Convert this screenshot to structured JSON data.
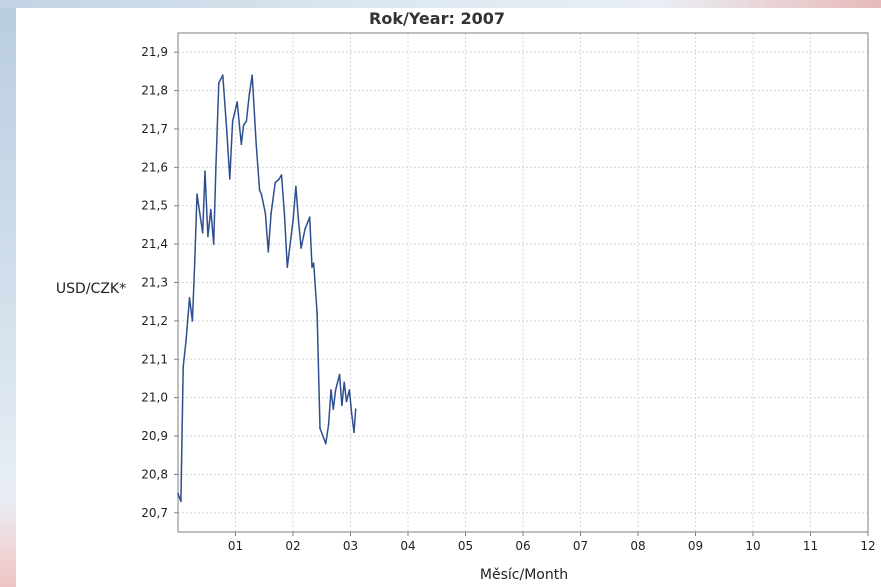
{
  "chart_data": {
    "type": "line",
    "title": "Rok/Year: 2007",
    "xlabel": "Měsíc/Month",
    "ylabel": "USD/CZK*",
    "x_unit": "month",
    "xlim": [
      0,
      12
    ],
    "ylim": [
      20.65,
      21.95
    ],
    "x_ticks": [
      {
        "value": 1,
        "label": "01"
      },
      {
        "value": 2,
        "label": "02"
      },
      {
        "value": 3,
        "label": "03"
      },
      {
        "value": 4,
        "label": "04"
      },
      {
        "value": 5,
        "label": "05"
      },
      {
        "value": 6,
        "label": "06"
      },
      {
        "value": 7,
        "label": "07"
      },
      {
        "value": 8,
        "label": "08"
      },
      {
        "value": 9,
        "label": "09"
      },
      {
        "value": 10,
        "label": "10"
      },
      {
        "value": 11,
        "label": "11"
      },
      {
        "value": 12,
        "label": "12"
      }
    ],
    "y_ticks": [
      {
        "value": 20.7,
        "label": "20,7"
      },
      {
        "value": 20.8,
        "label": "20,8"
      },
      {
        "value": 20.9,
        "label": "20,9"
      },
      {
        "value": 21.0,
        "label": "21,0"
      },
      {
        "value": 21.1,
        "label": "21,1"
      },
      {
        "value": 21.2,
        "label": "21,2"
      },
      {
        "value": 21.3,
        "label": "21,3"
      },
      {
        "value": 21.4,
        "label": "21,4"
      },
      {
        "value": 21.5,
        "label": "21,5"
      },
      {
        "value": 21.6,
        "label": "21,6"
      },
      {
        "value": 21.7,
        "label": "21,7"
      },
      {
        "value": 21.8,
        "label": "21,8"
      },
      {
        "value": 21.9,
        "label": "21,9"
      }
    ],
    "grid": true,
    "legend": "none",
    "series": [
      {
        "color": "#2e4f8f",
        "points": [
          [
            0.0,
            20.75
          ],
          [
            0.05,
            20.73
          ],
          [
            0.09,
            21.08
          ],
          [
            0.14,
            21.15
          ],
          [
            0.2,
            21.26
          ],
          [
            0.25,
            21.2
          ],
          [
            0.29,
            21.35
          ],
          [
            0.33,
            21.53
          ],
          [
            0.38,
            21.48
          ],
          [
            0.43,
            21.43
          ],
          [
            0.47,
            21.59
          ],
          [
            0.52,
            21.42
          ],
          [
            0.57,
            21.49
          ],
          [
            0.62,
            21.4
          ],
          [
            0.66,
            21.6
          ],
          [
            0.71,
            21.82
          ],
          [
            0.78,
            21.84
          ],
          [
            0.85,
            21.69
          ],
          [
            0.9,
            21.57
          ],
          [
            0.95,
            21.72
          ],
          [
            1.03,
            21.77
          ],
          [
            1.1,
            21.66
          ],
          [
            1.14,
            21.71
          ],
          [
            1.19,
            21.72
          ],
          [
            1.24,
            21.79
          ],
          [
            1.29,
            21.84
          ],
          [
            1.36,
            21.66
          ],
          [
            1.42,
            21.54
          ],
          [
            1.45,
            21.53
          ],
          [
            1.52,
            21.48
          ],
          [
            1.57,
            21.38
          ],
          [
            1.62,
            21.48
          ],
          [
            1.69,
            21.56
          ],
          [
            1.76,
            21.57
          ],
          [
            1.8,
            21.58
          ],
          [
            1.85,
            21.48
          ],
          [
            1.9,
            21.34
          ],
          [
            2.0,
            21.46
          ],
          [
            2.05,
            21.55
          ],
          [
            2.09,
            21.47
          ],
          [
            2.14,
            21.39
          ],
          [
            2.21,
            21.44
          ],
          [
            2.29,
            21.47
          ],
          [
            2.33,
            21.34
          ],
          [
            2.36,
            21.35
          ],
          [
            2.42,
            21.22
          ],
          [
            2.47,
            20.92
          ],
          [
            2.52,
            20.9
          ],
          [
            2.57,
            20.88
          ],
          [
            2.62,
            20.93
          ],
          [
            2.66,
            21.02
          ],
          [
            2.7,
            20.97
          ],
          [
            2.74,
            21.02
          ],
          [
            2.81,
            21.06
          ],
          [
            2.85,
            20.98
          ],
          [
            2.89,
            21.04
          ],
          [
            2.93,
            20.99
          ],
          [
            2.98,
            21.02
          ],
          [
            3.02,
            20.96
          ],
          [
            3.06,
            20.91
          ],
          [
            3.09,
            20.97
          ]
        ]
      }
    ]
  }
}
